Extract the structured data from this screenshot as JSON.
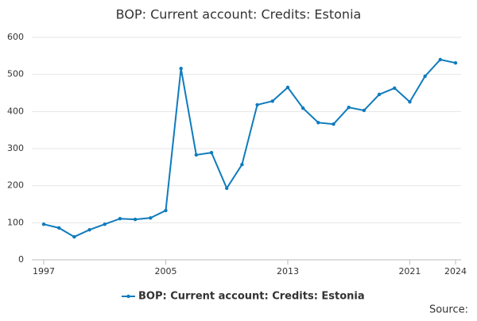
{
  "chart_data": {
    "type": "line",
    "title": "BOP: Current account: Credits: Estonia",
    "x": [
      1997,
      1998,
      1999,
      2000,
      2001,
      2002,
      2003,
      2004,
      2005,
      2006,
      2007,
      2008,
      2009,
      2010,
      2011,
      2012,
      2013,
      2014,
      2015,
      2016,
      2017,
      2018,
      2019,
      2020,
      2021,
      2022,
      2023,
      2024
    ],
    "series": [
      {
        "name": "BOP: Current account: Credits: Estonia",
        "color": "#0f7bbd",
        "values": [
          96,
          86,
          62,
          81,
          96,
          111,
          109,
          113,
          133,
          516,
          283,
          289,
          193,
          257,
          418,
          428,
          465,
          409,
          370,
          366,
          411,
          403,
          446,
          463,
          426,
          495,
          540,
          531
        ]
      }
    ],
    "xlim": [
      1997,
      2024
    ],
    "xticks": [
      1997,
      2005,
      2013,
      2021,
      2024
    ],
    "ylim": [
      0,
      600
    ],
    "yticks": [
      0,
      100,
      200,
      300,
      400,
      500,
      600
    ],
    "grid": true,
    "legend": "bottom",
    "source": "Source:"
  }
}
